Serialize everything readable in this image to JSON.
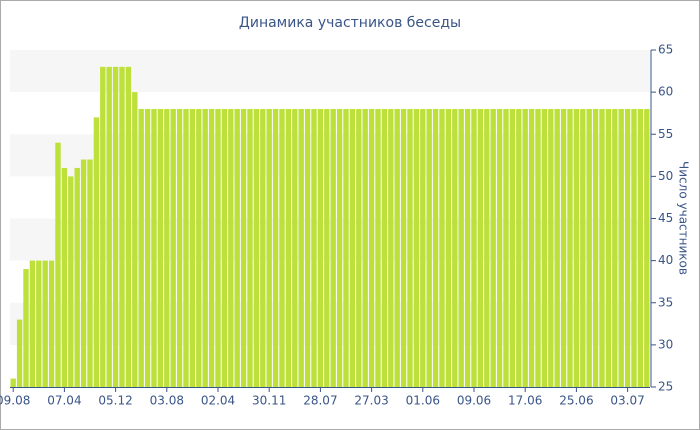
{
  "chart_data": {
    "type": "bar",
    "title": "Динамика участников беседы",
    "y_axis_label": "Число участников",
    "color": "#bde03a",
    "categories": [
      "09.08",
      null,
      null,
      null,
      null,
      null,
      null,
      null,
      "07.04",
      null,
      null,
      null,
      null,
      null,
      null,
      null,
      "05.12",
      null,
      null,
      null,
      null,
      null,
      null,
      null,
      "03.08",
      null,
      null,
      null,
      null,
      null,
      null,
      null,
      "02.04",
      null,
      null,
      null,
      null,
      null,
      null,
      null,
      "30.11",
      null,
      null,
      null,
      null,
      null,
      null,
      null,
      "28.07",
      null,
      null,
      null,
      null,
      null,
      null,
      null,
      "27.03",
      null,
      null,
      null,
      null,
      null,
      null,
      null,
      "01.06",
      null,
      null,
      null,
      null,
      null,
      null,
      null,
      "09.06",
      null,
      null,
      null,
      null,
      null,
      null,
      null,
      "17.06",
      null,
      null,
      null,
      null,
      null,
      null,
      null,
      "25.06",
      null,
      null,
      null,
      null,
      null,
      null,
      null,
      "03.07",
      null,
      null,
      null
    ],
    "values": [
      26,
      33,
      39,
      40,
      40,
      40,
      40,
      54,
      51,
      50,
      51,
      52,
      52,
      57,
      63,
      63,
      63,
      63,
      63,
      60,
      58,
      58,
      58,
      58,
      58,
      58,
      58,
      58,
      58,
      58,
      58,
      58,
      58,
      58,
      58,
      58,
      58,
      58,
      58,
      58,
      58,
      58,
      58,
      58,
      58,
      58,
      58,
      58,
      58,
      58,
      58,
      58,
      58,
      58,
      58,
      58,
      58,
      58,
      58,
      58,
      58,
      58,
      58,
      58,
      58,
      58,
      58,
      58,
      58,
      58,
      58,
      58,
      58,
      58,
      58,
      58,
      58,
      58,
      58,
      58,
      58,
      58,
      58,
      58,
      58,
      58,
      58,
      58,
      58,
      58,
      58,
      58,
      58,
      58,
      58,
      58,
      58,
      58,
      58,
      58
    ],
    "ylim": [
      25,
      65
    ],
    "yticks": [
      25,
      30,
      35,
      40,
      45,
      50,
      55,
      60,
      65
    ],
    "y_axis_side": "right",
    "grid_bands": true
  }
}
